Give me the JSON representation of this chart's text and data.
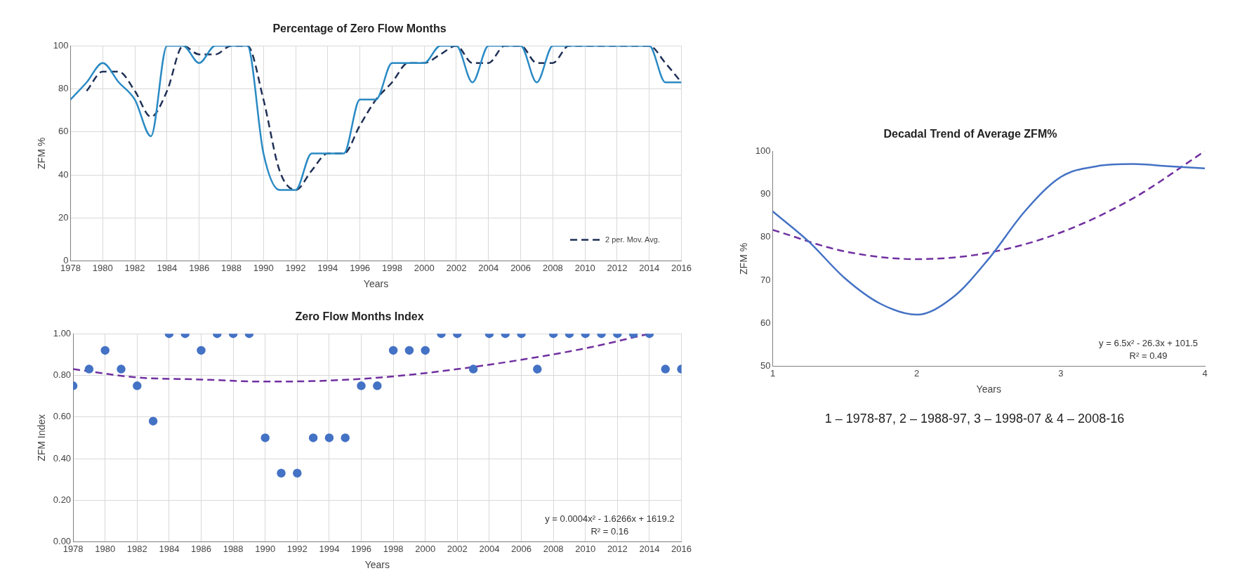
{
  "chart_data": [
    {
      "type": "line",
      "title": "Percentage of Zero Flow Months",
      "xlabel": "Years",
      "ylabel": "ZFM %",
      "xlim": [
        1978,
        2016
      ],
      "xticks": [
        1978,
        1980,
        1982,
        1984,
        1986,
        1988,
        1990,
        1992,
        1994,
        1996,
        1998,
        2000,
        2002,
        2004,
        2006,
        2008,
        2010,
        2012,
        2014,
        2016
      ],
      "ylim": [
        0,
        100
      ],
      "yticks": [
        0,
        20,
        40,
        60,
        80,
        100
      ],
      "grid": true,
      "legend": "bottom right",
      "marker": "none",
      "x": [
        1978,
        1979,
        1980,
        1981,
        1982,
        1983,
        1984,
        1985,
        1986,
        1987,
        1988,
        1989,
        1990,
        1991,
        1992,
        1993,
        1994,
        1995,
        1996,
        1997,
        1998,
        1999,
        2000,
        2001,
        2002,
        2003,
        2004,
        2005,
        2006,
        2007,
        2008,
        2009,
        2010,
        2011,
        2012,
        2013,
        2014,
        2015,
        2016
      ],
      "series": [
        {
          "color": "#2a8ac4",
          "line_style": "solid",
          "values": [
            75,
            83,
            92,
            83,
            75,
            58,
            100,
            100,
            92,
            100,
            100,
            100,
            50,
            33,
            33,
            50,
            50,
            50,
            75,
            75,
            92,
            92,
            92,
            100,
            100,
            83,
            100,
            100,
            100,
            83,
            100,
            100,
            100,
            100,
            100,
            100,
            100,
            83,
            83
          ]
        },
        {
          "name": "2 per. Mov. Avg.",
          "color": "#1f3056",
          "line_style": "dashed",
          "values": [
            null,
            79,
            88,
            88,
            79,
            67,
            79,
            100,
            96,
            96,
            100,
            100,
            75,
            42,
            33,
            42,
            50,
            50,
            63,
            75,
            83,
            92,
            92,
            96,
            100,
            92,
            92,
            100,
            100,
            92,
            92,
            100,
            100,
            100,
            100,
            100,
            100,
            92,
            83
          ]
        }
      ]
    },
    {
      "type": "scatter",
      "title": "Zero Flow Months Index",
      "xlabel": "Years",
      "ylabel": "ZFM Index",
      "xlim": [
        1978,
        2016
      ],
      "xticks": [
        1978,
        1980,
        1982,
        1984,
        1986,
        1988,
        1990,
        1992,
        1994,
        1996,
        1998,
        2000,
        2002,
        2004,
        2006,
        2008,
        2010,
        2012,
        2014,
        2016
      ],
      "ylim": [
        0,
        1
      ],
      "yticks": [
        {
          "value": 0,
          "label": "0.00"
        },
        {
          "value": 0.2,
          "label": "0.20"
        },
        {
          "value": 0.4,
          "label": "0.40"
        },
        {
          "value": 0.6,
          "label": "0.60"
        },
        {
          "value": 0.8,
          "label": "0.80"
        },
        {
          "value": 1,
          "label": "1.00"
        }
      ],
      "grid": true,
      "marker": "circle",
      "annotations": [
        "y = 0.0004x² - 1.6266x + 1619.2",
        "R² = 0.16"
      ],
      "x": [
        1978,
        1979,
        1980,
        1981,
        1982,
        1983,
        1984,
        1985,
        1986,
        1987,
        1988,
        1989,
        1990,
        1991,
        1992,
        1993,
        1994,
        1995,
        1996,
        1997,
        1998,
        1999,
        2000,
        2001,
        2002,
        2003,
        2004,
        2005,
        2006,
        2007,
        2008,
        2009,
        2010,
        2011,
        2012,
        2013,
        2014,
        2015,
        2016
      ],
      "series": [
        {
          "color": "#4472c4",
          "values": [
            0.75,
            0.83,
            0.92,
            0.83,
            0.75,
            0.58,
            1,
            1,
            0.92,
            1,
            1,
            1,
            0.5,
            0.33,
            0.33,
            0.5,
            0.5,
            0.5,
            0.75,
            0.75,
            0.92,
            0.92,
            0.92,
            1,
            1,
            0.83,
            1,
            1,
            1,
            0.83,
            1,
            1,
            1,
            1,
            1,
            1,
            1,
            0.83,
            0.83
          ]
        },
        {
          "type": "line",
          "color": "#7030a0",
          "line_style": "dashed",
          "marker": "none",
          "x": [
            1978,
            1982,
            1986,
            1990,
            1994,
            1998,
            2002,
            2006,
            2010,
            2014
          ],
          "values": [
            0.83,
            0.79,
            0.78,
            0.77,
            0.775,
            0.795,
            0.83,
            0.875,
            0.93,
            1
          ]
        }
      ]
    },
    {
      "type": "line",
      "title": "Decadal Trend of Average ZFM%",
      "xlabel": "Years",
      "ylabel": "ZFM %",
      "xlim": [
        1,
        4
      ],
      "xticks": [
        1,
        2,
        3,
        4
      ],
      "ylim": [
        50,
        100
      ],
      "yticks": [
        50,
        60,
        70,
        80,
        90,
        100
      ],
      "grid": false,
      "marker": "none",
      "annotations": [
        "y = 6.5x² - 26.3x + 101.5",
        "R² = 0.49",
        "1 – 1978-87,  2 – 1988-97,  3 – 1998-07  & 4 – 2008-16"
      ],
      "series": [
        {
          "color": "#4472c4",
          "line_style": "solid",
          "x": [
            1,
            1.25,
            1.5,
            1.75,
            2,
            2.25,
            2.5,
            2.75,
            3,
            3.25,
            3.5,
            3.75,
            4
          ],
          "values": [
            86,
            79,
            70.5,
            64.5,
            62,
            66,
            75,
            86,
            94,
            96.5,
            97,
            96.5,
            96
          ]
        },
        {
          "color": "#7030a0",
          "line_style": "dashed",
          "x": [
            1,
            1.5,
            2,
            2.5,
            3,
            3.5,
            4
          ],
          "values": [
            81.7,
            76.7,
            74.9,
            76.4,
            81.1,
            89,
            100
          ]
        }
      ]
    }
  ]
}
